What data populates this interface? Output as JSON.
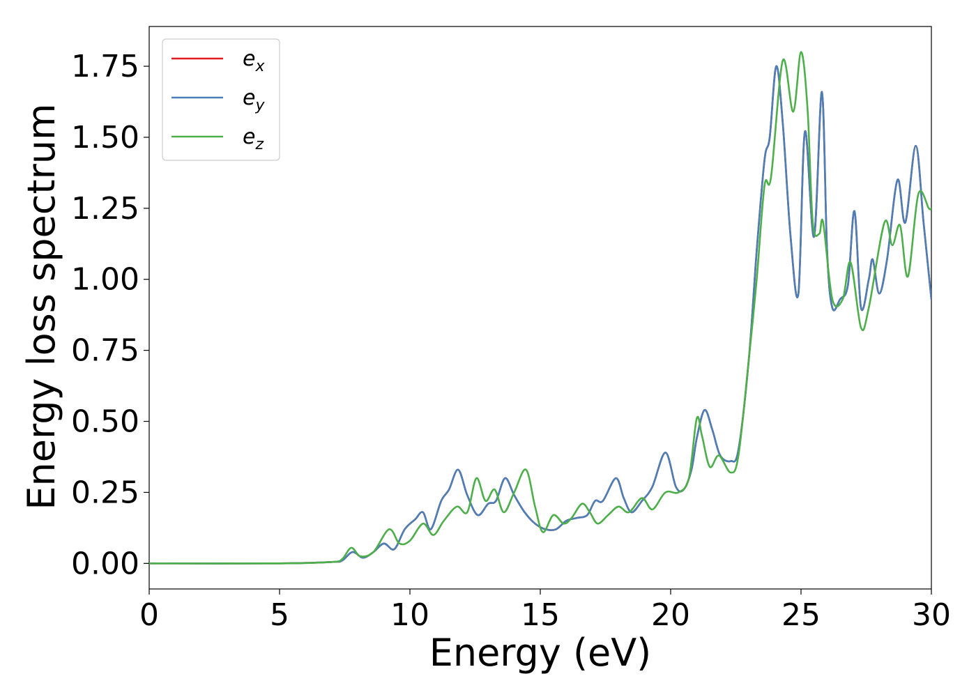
{
  "chart_data": {
    "type": "line",
    "xlabel": "Energy (eV)",
    "ylabel": "Energy loss spectrum",
    "xlim": [
      0,
      30
    ],
    "ylim": [
      -0.09,
      1.89
    ],
    "xticks": [
      "0",
      "5",
      "10",
      "15",
      "20",
      "25",
      "30"
    ],
    "yticks": [
      "0.00",
      "0.25",
      "0.50",
      "0.75",
      "1.00",
      "1.25",
      "1.50",
      "1.75"
    ],
    "grid": false,
    "legend_position": "top-left",
    "series": [
      {
        "name": "e_x",
        "legend_base": "e",
        "legend_sub": "x",
        "color": "#e41a1c",
        "x": [
          0,
          5,
          7,
          7.4,
          7.8,
          8.2,
          8.6,
          9.0,
          9.4,
          9.8,
          10.2,
          10.5,
          10.8,
          11.2,
          11.5,
          11.85,
          12.2,
          12.6,
          13.0,
          13.3,
          13.65,
          14.0,
          14.4,
          14.8,
          15.2,
          15.6,
          16.0,
          16.4,
          16.8,
          17.1,
          17.4,
          17.9,
          18.2,
          18.5,
          18.9,
          19.3,
          19.8,
          20.2,
          20.5,
          20.8,
          21.0,
          21.3,
          21.6,
          21.9,
          22.3,
          22.6,
          23.0,
          23.3,
          23.6,
          23.8,
          24.05,
          24.3,
          24.6,
          24.9,
          25.15,
          25.5,
          25.8,
          26.0,
          26.2,
          26.5,
          26.8,
          27.05,
          27.3,
          27.6,
          27.75,
          28.0,
          28.3,
          28.7,
          29.0,
          29.4,
          29.7,
          30.0
        ],
        "values": [
          0.0,
          0.0,
          0.005,
          0.01,
          0.04,
          0.02,
          0.04,
          0.07,
          0.05,
          0.12,
          0.155,
          0.18,
          0.12,
          0.22,
          0.26,
          0.33,
          0.24,
          0.17,
          0.21,
          0.22,
          0.3,
          0.24,
          0.18,
          0.14,
          0.12,
          0.12,
          0.15,
          0.16,
          0.17,
          0.22,
          0.22,
          0.3,
          0.23,
          0.18,
          0.22,
          0.27,
          0.39,
          0.27,
          0.26,
          0.33,
          0.44,
          0.54,
          0.47,
          0.38,
          0.36,
          0.4,
          0.72,
          1.1,
          1.42,
          1.5,
          1.75,
          1.55,
          1.15,
          0.95,
          1.52,
          1.15,
          1.66,
          1.1,
          0.9,
          0.93,
          0.98,
          1.24,
          0.9,
          1.0,
          1.07,
          0.95,
          1.07,
          1.35,
          1.2,
          1.47,
          1.2,
          0.93
        ]
      },
      {
        "name": "e_y",
        "legend_base": "e",
        "legend_sub": "y",
        "color": "#4a7fb8",
        "x": [
          0,
          5,
          7,
          7.4,
          7.8,
          8.2,
          8.6,
          9.0,
          9.4,
          9.8,
          10.2,
          10.5,
          10.8,
          11.2,
          11.5,
          11.85,
          12.2,
          12.6,
          13.0,
          13.3,
          13.65,
          14.0,
          14.4,
          14.8,
          15.2,
          15.6,
          16.0,
          16.4,
          16.8,
          17.1,
          17.4,
          17.9,
          18.2,
          18.5,
          18.9,
          19.3,
          19.8,
          20.2,
          20.5,
          20.8,
          21.0,
          21.3,
          21.6,
          21.9,
          22.3,
          22.6,
          23.0,
          23.3,
          23.6,
          23.8,
          24.05,
          24.3,
          24.6,
          24.9,
          25.15,
          25.5,
          25.8,
          26.0,
          26.2,
          26.5,
          26.8,
          27.05,
          27.3,
          27.6,
          27.75,
          28.0,
          28.3,
          28.7,
          29.0,
          29.4,
          29.7,
          30.0
        ],
        "values": [
          0.0,
          0.0,
          0.005,
          0.01,
          0.04,
          0.02,
          0.04,
          0.07,
          0.05,
          0.12,
          0.155,
          0.18,
          0.12,
          0.22,
          0.26,
          0.33,
          0.24,
          0.17,
          0.21,
          0.22,
          0.3,
          0.24,
          0.18,
          0.14,
          0.12,
          0.12,
          0.15,
          0.16,
          0.17,
          0.22,
          0.22,
          0.3,
          0.23,
          0.18,
          0.22,
          0.27,
          0.39,
          0.27,
          0.26,
          0.33,
          0.44,
          0.54,
          0.47,
          0.38,
          0.36,
          0.4,
          0.72,
          1.1,
          1.42,
          1.5,
          1.75,
          1.55,
          1.15,
          0.95,
          1.52,
          1.15,
          1.66,
          1.1,
          0.9,
          0.93,
          0.98,
          1.24,
          0.9,
          1.0,
          1.07,
          0.95,
          1.07,
          1.35,
          1.2,
          1.47,
          1.2,
          0.93
        ]
      },
      {
        "name": "e_z",
        "legend_base": "e",
        "legend_sub": "z",
        "color": "#4daf4a",
        "x": [
          0,
          5,
          7,
          7.4,
          7.75,
          8.1,
          8.6,
          9.2,
          9.6,
          10.0,
          10.5,
          10.9,
          11.3,
          11.8,
          12.2,
          12.55,
          12.9,
          13.25,
          13.6,
          14.0,
          14.45,
          14.8,
          15.1,
          15.5,
          15.9,
          16.2,
          16.6,
          16.9,
          17.2,
          17.6,
          18.0,
          18.4,
          18.9,
          19.3,
          19.8,
          20.3,
          20.7,
          21.0,
          21.2,
          21.5,
          21.85,
          22.3,
          22.6,
          23.0,
          23.3,
          23.6,
          23.85,
          24.3,
          24.7,
          25.0,
          25.25,
          25.45,
          25.7,
          25.85,
          26.2,
          26.6,
          26.9,
          27.3,
          27.6,
          28.2,
          28.5,
          28.8,
          29.1,
          29.5,
          29.9,
          30.0
        ],
        "values": [
          0.0,
          0.0,
          0.005,
          0.015,
          0.055,
          0.025,
          0.04,
          0.12,
          0.07,
          0.08,
          0.14,
          0.1,
          0.15,
          0.2,
          0.18,
          0.3,
          0.22,
          0.26,
          0.18,
          0.25,
          0.33,
          0.2,
          0.11,
          0.17,
          0.14,
          0.16,
          0.21,
          0.18,
          0.14,
          0.17,
          0.2,
          0.18,
          0.23,
          0.19,
          0.25,
          0.25,
          0.3,
          0.51,
          0.45,
          0.34,
          0.38,
          0.32,
          0.38,
          0.72,
          1.0,
          1.33,
          1.36,
          1.77,
          1.59,
          1.8,
          1.6,
          1.2,
          1.16,
          1.2,
          0.93,
          0.93,
          1.06,
          0.83,
          0.9,
          1.2,
          1.12,
          1.19,
          1.01,
          1.3,
          1.25,
          1.25
        ]
      }
    ]
  }
}
